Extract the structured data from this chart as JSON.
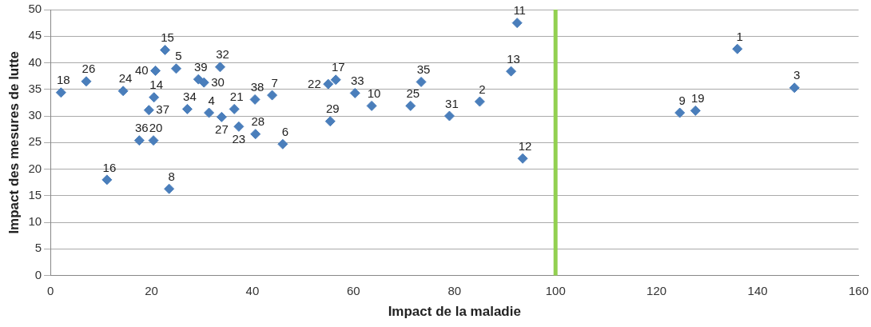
{
  "chart_data": {
    "type": "scatter",
    "xlabel": "Impact de la maladie",
    "ylabel": "Impact des mesures de lutte",
    "x": [
      136.0,
      85.0,
      147.3,
      31.4,
      24.9,
      46.0,
      43.9,
      23.5,
      124.6,
      63.6,
      92.4,
      93.5,
      91.2,
      20.5,
      22.7,
      11.2,
      56.5,
      2.1,
      127.7,
      20.4,
      36.4,
      55.0,
      37.3,
      14.4,
      71.3,
      7.1,
      33.9,
      40.6,
      55.4,
      30.4,
      79.0,
      33.6,
      60.3,
      27.1,
      73.4,
      17.6,
      19.5,
      40.5,
      29.3,
      20.8
    ],
    "values": [
      42.6,
      32.7,
      35.3,
      30.6,
      38.9,
      24.7,
      33.9,
      16.3,
      30.6,
      31.9,
      47.5,
      22.0,
      38.4,
      33.5,
      42.4,
      18.0,
      36.8,
      34.4,
      31.0,
      25.4,
      31.3,
      36.0,
      28.0,
      34.7,
      31.9,
      36.5,
      29.8,
      26.6,
      29.0,
      36.3,
      30.0,
      39.2,
      34.3,
      31.3,
      36.4,
      25.4,
      31.1,
      33.1,
      36.9,
      38.5
    ],
    "annotations": [
      {
        "text": "1",
        "x": 136.0,
        "y": 42.6
      },
      {
        "text": "2",
        "x": 85.0,
        "y": 32.7
      },
      {
        "text": "3",
        "x": 147.3,
        "y": 35.3
      },
      {
        "text": "4",
        "x": 31.4,
        "y": 30.6
      },
      {
        "text": "5",
        "x": 24.9,
        "y": 38.9
      },
      {
        "text": "6",
        "x": 46.0,
        "y": 24.7
      },
      {
        "text": "7",
        "x": 43.9,
        "y": 33.9
      },
      {
        "text": "8",
        "x": 23.5,
        "y": 16.3
      },
      {
        "text": "9",
        "x": 124.6,
        "y": 30.6
      },
      {
        "text": "10",
        "x": 63.6,
        "y": 31.9
      },
      {
        "text": "11",
        "x": 92.4,
        "y": 47.5
      },
      {
        "text": "12",
        "x": 93.5,
        "y": 22.0
      },
      {
        "text": "13",
        "x": 91.2,
        "y": 38.4
      },
      {
        "text": "14",
        "x": 20.5,
        "y": 33.5
      },
      {
        "text": "15",
        "x": 22.7,
        "y": 42.4
      },
      {
        "text": "16",
        "x": 11.2,
        "y": 18.0
      },
      {
        "text": "17",
        "x": 56.5,
        "y": 36.8
      },
      {
        "text": "18",
        "x": 2.1,
        "y": 34.4
      },
      {
        "text": "19",
        "x": 127.7,
        "y": 31.0
      },
      {
        "text": "20",
        "x": 20.4,
        "y": 25.4
      },
      {
        "text": "21",
        "x": 36.4,
        "y": 31.3
      },
      {
        "text": "22",
        "x": 55.0,
        "y": 36.0
      },
      {
        "text": "23",
        "x": 37.3,
        "y": 28.0
      },
      {
        "text": "24",
        "x": 14.4,
        "y": 34.7
      },
      {
        "text": "25",
        "x": 71.3,
        "y": 31.9
      },
      {
        "text": "26",
        "x": 7.1,
        "y": 36.5
      },
      {
        "text": "27",
        "x": 33.9,
        "y": 29.8
      },
      {
        "text": "28",
        "x": 40.6,
        "y": 26.6
      },
      {
        "text": "29",
        "x": 55.4,
        "y": 29.0
      },
      {
        "text": "30",
        "x": 30.4,
        "y": 36.3
      },
      {
        "text": "31",
        "x": 79.0,
        "y": 30.0
      },
      {
        "text": "32",
        "x": 33.6,
        "y": 39.2
      },
      {
        "text": "33",
        "x": 60.3,
        "y": 34.3
      },
      {
        "text": "34",
        "x": 27.1,
        "y": 31.3
      },
      {
        "text": "35",
        "x": 73.4,
        "y": 36.4
      },
      {
        "text": "36",
        "x": 17.6,
        "y": 25.4
      },
      {
        "text": "37",
        "x": 19.5,
        "y": 31.1
      },
      {
        "text": "38",
        "x": 40.5,
        "y": 33.1
      },
      {
        "text": "39",
        "x": 29.3,
        "y": 36.9
      },
      {
        "text": "40",
        "x": 20.8,
        "y": 38.5
      }
    ],
    "color": "#4a7ebb",
    "marker": "diamond",
    "grid": "y",
    "legend": false,
    "xlim": [
      0,
      160
    ],
    "xticks": [
      0,
      20,
      40,
      60,
      80,
      100,
      120,
      140,
      160
    ],
    "ylim": [
      0,
      50
    ],
    "yticks": [
      0,
      5,
      10,
      15,
      20,
      25,
      30,
      35,
      40,
      45,
      50
    ],
    "ref_lines": [
      {
        "axis": "x",
        "value": 100,
        "color": "#92d050"
      }
    ]
  }
}
